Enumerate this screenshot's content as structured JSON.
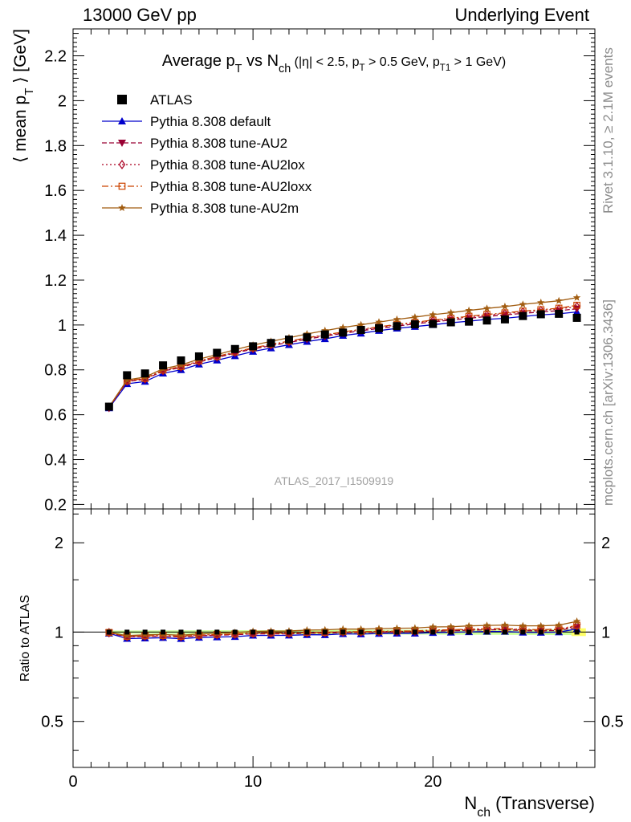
{
  "header": {
    "left": "13000 GeV pp",
    "right": "Underlying Event"
  },
  "side_labels": {
    "rivet": "Rivet 3.1.10, ≥ 2.1M events",
    "mcplots": "mcplots.cern.ch [arXiv:1306.3436]"
  },
  "chart_data": {
    "type": "line",
    "title_parts": {
      "a": "Average p",
      "a_sub": "T",
      "b": " vs N",
      "b_sub": "ch",
      "c": " (|η| < 2.5, p",
      "c_sub": "T",
      "d": " > 0.5 GeV, p",
      "d_sub": "T1",
      "e": " > 1 GeV)"
    },
    "watermark": "ATLAS_2017_I1509919",
    "ylabel": "⟨ mean p",
    "ylabel_sub": "T",
    "ylabel_end": " ⟩ [GeV]",
    "ratio_ylabel": "Ratio to ATLAS",
    "xlabel": "N",
    "xlabel_sub": "ch",
    "xlabel_end": " (Transverse)",
    "xlim": [
      0,
      29
    ],
    "ylim": [
      0.18,
      2.32
    ],
    "ratio_ylim": [
      0.35,
      2.6
    ],
    "x_ticks": [
      "0",
      "10",
      "20"
    ],
    "y_ticks": [
      "0.2",
      "0.4",
      "0.6",
      "0.8",
      "1",
      "1.2",
      "1.4",
      "1.6",
      "1.8",
      "2",
      "2.2"
    ],
    "ratio_ticks": [
      "0.5",
      "1",
      "2"
    ],
    "x": [
      2,
      3,
      4,
      5,
      6,
      7,
      8,
      9,
      10,
      11,
      12,
      13,
      14,
      15,
      16,
      17,
      18,
      19,
      20,
      21,
      22,
      23,
      24,
      25,
      26,
      27,
      28
    ],
    "data": {
      "name": "ATLAS",
      "color": "#000000",
      "values": [
        0.636,
        0.776,
        0.784,
        0.82,
        0.842,
        0.86,
        0.876,
        0.893,
        0.905,
        0.92,
        0.935,
        0.945,
        0.958,
        0.966,
        0.978,
        0.986,
        0.995,
        1.003,
        1.005,
        1.012,
        1.015,
        1.02,
        1.025,
        1.04,
        1.048,
        1.05,
        1.032
      ]
    },
    "series": [
      {
        "name": "Pythia 8.308 default",
        "color": "#0000cc",
        "marker": "triangle-up",
        "dash": "",
        "values": [
          0.63,
          0.738,
          0.748,
          0.785,
          0.8,
          0.825,
          0.843,
          0.862,
          0.882,
          0.897,
          0.912,
          0.926,
          0.938,
          0.953,
          0.963,
          0.975,
          0.985,
          0.993,
          1.001,
          1.01,
          1.017,
          1.025,
          1.03,
          1.038,
          1.045,
          1.05,
          1.058
        ]
      },
      {
        "name": "Pythia 8.308 tune-AU2",
        "color": "#990033",
        "marker": "triangle-down",
        "dash": "6,3",
        "values": [
          0.632,
          0.748,
          0.758,
          0.795,
          0.81,
          0.835,
          0.855,
          0.875,
          0.893,
          0.908,
          0.922,
          0.937,
          0.95,
          0.963,
          0.974,
          0.985,
          0.995,
          1.005,
          1.014,
          1.022,
          1.03,
          1.038,
          1.045,
          1.052,
          1.058,
          1.064,
          1.072
        ]
      },
      {
        "name": "Pythia 8.308 tune-AU2lox",
        "color": "#aa0022",
        "marker": "diamond-open",
        "dash": "2,3",
        "values": [
          0.633,
          0.75,
          0.76,
          0.797,
          0.813,
          0.838,
          0.858,
          0.878,
          0.896,
          0.912,
          0.926,
          0.941,
          0.954,
          0.967,
          0.978,
          0.99,
          1.0,
          1.01,
          1.019,
          1.027,
          1.036,
          1.044,
          1.051,
          1.058,
          1.065,
          1.071,
          1.082
        ]
      },
      {
        "name": "Pythia 8.308 tune-AU2loxx",
        "color": "#cc4400",
        "marker": "square-open",
        "dash": "8,3,2,3",
        "values": [
          0.634,
          0.751,
          0.762,
          0.799,
          0.815,
          0.84,
          0.86,
          0.88,
          0.898,
          0.914,
          0.928,
          0.943,
          0.956,
          0.969,
          0.981,
          0.992,
          1.003,
          1.012,
          1.022,
          1.03,
          1.039,
          1.047,
          1.054,
          1.062,
          1.068,
          1.075,
          1.088
        ]
      },
      {
        "name": "Pythia 8.308 tune-AU2m",
        "color": "#a15c10",
        "marker": "star",
        "dash": "",
        "values": [
          0.635,
          0.755,
          0.768,
          0.805,
          0.822,
          0.848,
          0.868,
          0.89,
          0.91,
          0.927,
          0.943,
          0.96,
          0.975,
          0.989,
          1.001,
          1.013,
          1.025,
          1.035,
          1.046,
          1.055,
          1.065,
          1.074,
          1.082,
          1.092,
          1.1,
          1.108,
          1.122
        ]
      }
    ]
  }
}
